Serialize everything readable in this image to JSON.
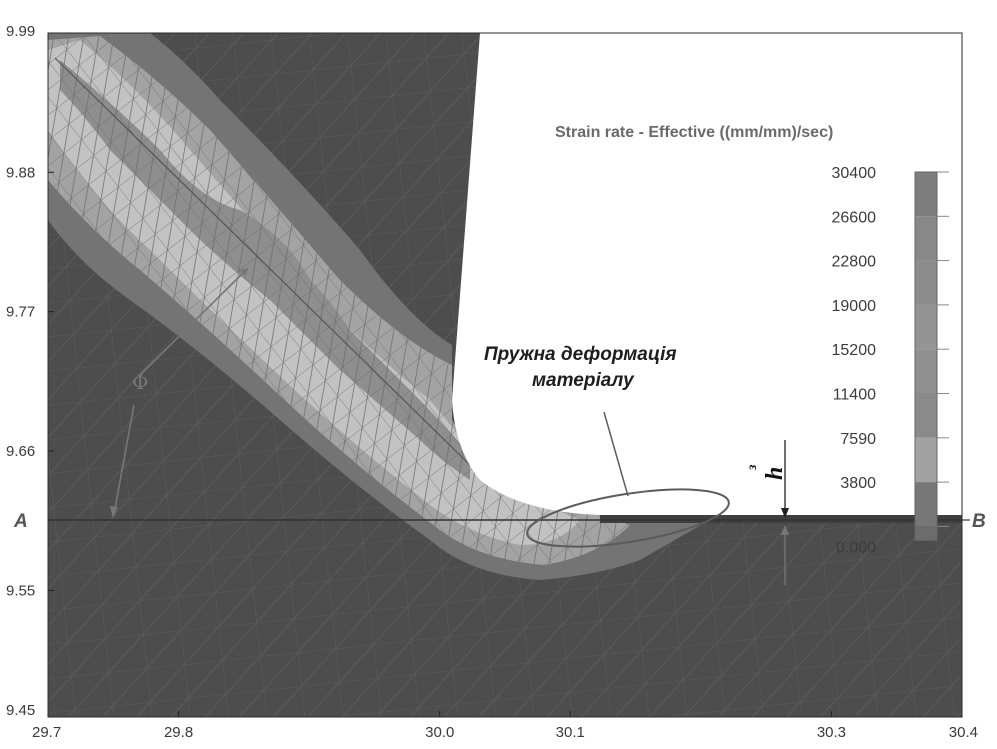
{
  "chart_data": {
    "type": "heatmap",
    "title": "",
    "xlabel": "",
    "ylabel": "",
    "xlim": [
      29.7,
      30.4
    ],
    "ylim": [
      9.45,
      9.99
    ],
    "x_ticks": [
      "29.7",
      "29.8",
      "30.0",
      "30.1",
      "30.3",
      "30.4"
    ],
    "x_tick_values": [
      29.7,
      29.8,
      30.0,
      30.1,
      30.3,
      30.4
    ],
    "y_ticks": [
      "9.99",
      "9.88",
      "9.77",
      "9.66",
      "9.55",
      "9.45"
    ],
    "y_tick_values": [
      9.99,
      9.88,
      9.77,
      9.66,
      9.55,
      9.45
    ],
    "legend": {
      "title": "Strain rate - Effective ((mm/mm)/sec)",
      "values": [
        "30400",
        "26600",
        "22800",
        "19000",
        "15200",
        "11400",
        "7590",
        "3800",
        "0.000"
      ],
      "placement": "right"
    },
    "annotations": {
      "elastic_deformation_line1": "Пружна деформація",
      "elastic_deformation_line2": "матеріалу",
      "point_a": "A",
      "point_b": "B",
      "phi": "Φ",
      "h": "h",
      "h_sub": "з"
    },
    "grid": false
  },
  "colors": {
    "background_dark": "#4d4d4d",
    "band_outer": "#747474",
    "band_middle": "#a3a3a3",
    "band_inner": "#c2c2c2",
    "band_core": "#8e8e8e",
    "tool": "#ffffff",
    "mesh": "#666666",
    "legend_bar": [
      "#7d7d7d",
      "#888888",
      "#8c8c8c",
      "#949494",
      "#8f8f8f",
      "#8a8a8a",
      "#a2a2a2",
      "#777777",
      "#6c6c6c"
    ]
  }
}
